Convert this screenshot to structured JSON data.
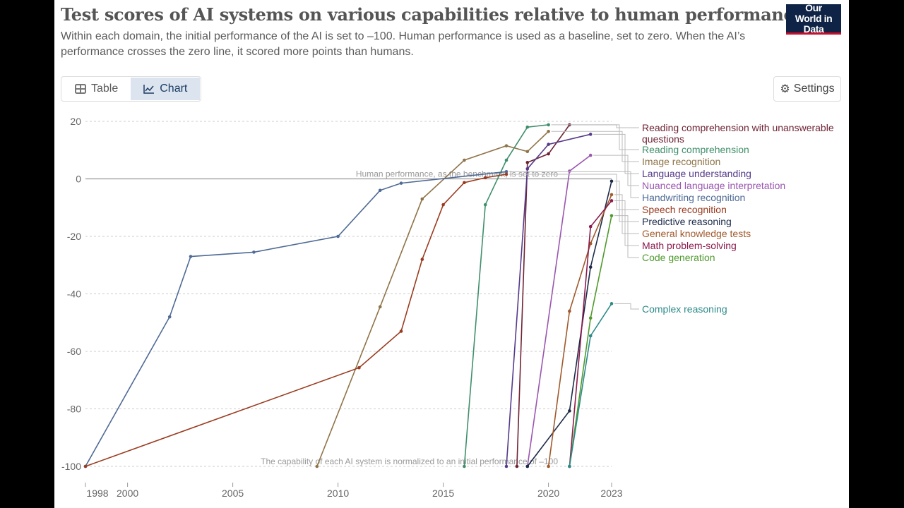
{
  "header": {
    "title": "Test scores of AI systems on various capabilities relative to human performance",
    "subtitle": "Within each domain, the initial performance of the AI is set to –100. Human performance is used as a baseline, set to zero. When the AI’s performance crosses the zero line, it scored more points than humans.",
    "logo": "Our World in Data"
  },
  "controls": {
    "tab_table": "Table",
    "tab_chart": "Chart",
    "active_tab": "Chart",
    "settings": "Settings",
    "table_icon": "table-icon",
    "chart_icon": "line-chart-icon",
    "settings_icon": "gear-icon"
  },
  "chart_data": {
    "type": "line",
    "title": "",
    "xlabel": "",
    "ylabel": "",
    "xlim": [
      1998,
      2023
    ],
    "ylim": [
      -100,
      20
    ],
    "x_ticks": [
      "1998",
      "2000",
      "2005",
      "2010",
      "2015",
      "2020",
      "2023"
    ],
    "y_ticks": [
      "20",
      "0",
      "-20",
      "-40",
      "-60",
      "-80",
      "-100"
    ],
    "grid": "horizontal dashed",
    "legend": "right, line-end labels",
    "annotations": {
      "zero": "Human performance, as the benchmark, is set to zero",
      "bottom": "The capability of each AI system is normalized to an initial performance of –100"
    },
    "series": [
      {
        "name": "Reading comprehension with unanswerable questions",
        "color": "#6e2335",
        "points": [
          [
            2018.5,
            -100
          ],
          [
            2019,
            5.7
          ],
          [
            2020,
            8.7
          ],
          [
            2021,
            18.8
          ]
        ]
      },
      {
        "name": "Reading comprehension",
        "color": "#3f8f6c",
        "points": [
          [
            2016,
            -100
          ],
          [
            2017,
            -9
          ],
          [
            2018,
            6.5
          ],
          [
            2019,
            18
          ],
          [
            2020,
            18.8
          ]
        ]
      },
      {
        "name": "Image recognition",
        "color": "#8f7448",
        "points": [
          [
            2009,
            -100
          ],
          [
            2012,
            -44.5
          ],
          [
            2014,
            -7
          ],
          [
            2016,
            6.5
          ],
          [
            2018,
            11.5
          ],
          [
            2019,
            9.5
          ],
          [
            2020,
            16.5
          ]
        ]
      },
      {
        "name": "Language understanding",
        "color": "#553a8a",
        "points": [
          [
            2018,
            -100
          ],
          [
            2019,
            3.5
          ],
          [
            2020,
            12
          ],
          [
            2022,
            15.5
          ]
        ]
      },
      {
        "name": "Nuanced language interpretation",
        "color": "#9a56b0",
        "points": [
          [
            2019,
            -100
          ],
          [
            2021,
            2.7
          ],
          [
            2022,
            8.2
          ]
        ]
      },
      {
        "name": "Handwriting recognition",
        "color": "#4f6a96",
        "points": [
          [
            1998,
            -100
          ],
          [
            2002,
            -48
          ],
          [
            2003,
            -27
          ],
          [
            2006,
            -25.5
          ],
          [
            2010,
            -20
          ],
          [
            2012,
            -4
          ],
          [
            2013,
            -1.5
          ],
          [
            2018,
            2.5
          ]
        ]
      },
      {
        "name": "Speech recognition",
        "color": "#9a3b1f",
        "points": [
          [
            1998,
            -100
          ],
          [
            2011,
            -65.7
          ],
          [
            2013,
            -53
          ],
          [
            2014,
            -28
          ],
          [
            2015,
            -9
          ],
          [
            2016,
            -1.3
          ],
          [
            2017,
            0.4
          ],
          [
            2018,
            1.6
          ]
        ]
      },
      {
        "name": "Predictive reasoning",
        "color": "#1b2a48",
        "points": [
          [
            2019,
            -100
          ],
          [
            2021,
            -80.7
          ],
          [
            2022,
            -30.7
          ],
          [
            2023,
            -0.8
          ]
        ]
      },
      {
        "name": "General knowledge tests",
        "color": "#a05a2c",
        "points": [
          [
            2020,
            -100
          ],
          [
            2021,
            -46
          ],
          [
            2022,
            -22.5
          ],
          [
            2023,
            -5.5
          ]
        ]
      },
      {
        "name": "Math problem-solving",
        "color": "#8a1b4c",
        "points": [
          [
            2021,
            -100
          ],
          [
            2022,
            -16.6
          ],
          [
            2023,
            -7.6
          ]
        ]
      },
      {
        "name": "Code generation",
        "color": "#4f9a2d",
        "points": [
          [
            2021,
            -100
          ],
          [
            2022,
            -48.4
          ],
          [
            2023,
            -12.8
          ]
        ]
      },
      {
        "name": "Complex reasoning",
        "color": "#2e8a8a",
        "points": [
          [
            2021,
            -100
          ],
          [
            2022,
            -54.6
          ],
          [
            2023,
            -43.4
          ]
        ]
      }
    ]
  }
}
